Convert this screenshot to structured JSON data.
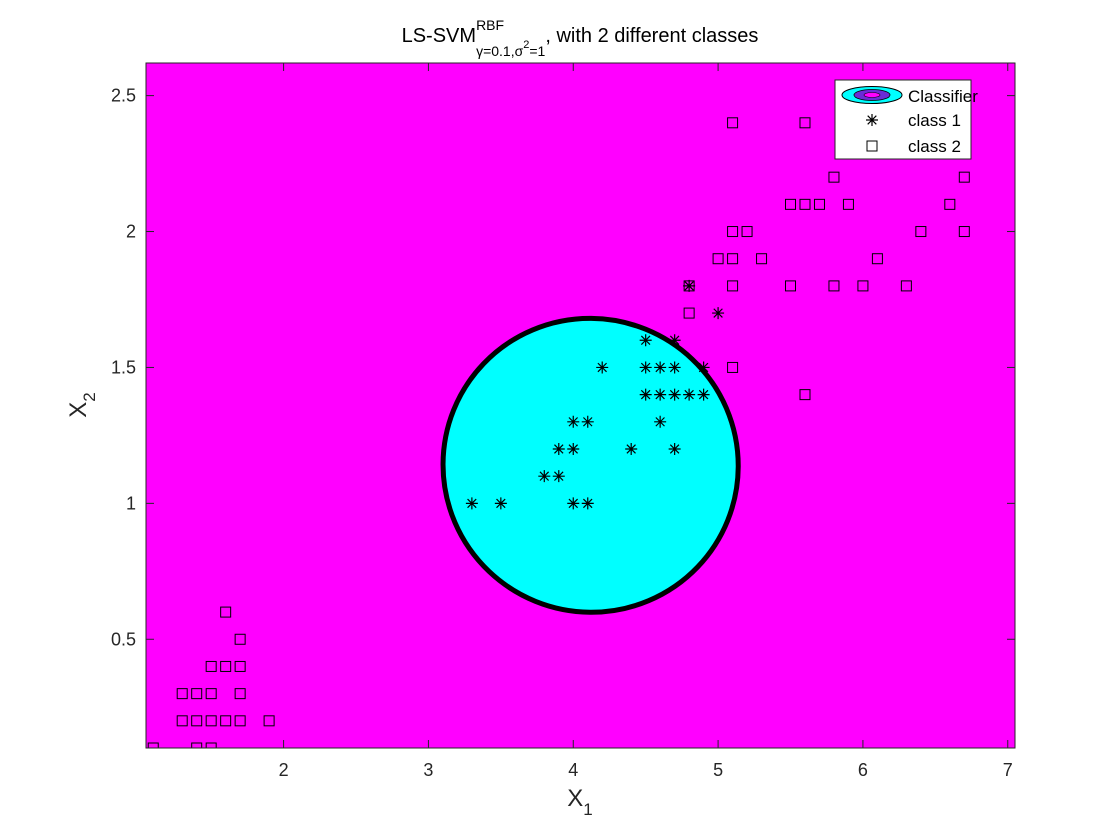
{
  "chart_data": {
    "type": "scatter",
    "title": {
      "main": "LS-SVM",
      "superscript": "RBF",
      "subscript_gamma": "γ=0.1,",
      "subscript_sigma": "σ",
      "subscript_sigma_exp": "2",
      "subscript_tail": "=1",
      "suffix": ", with 2 different classes"
    },
    "xlabel": {
      "base": "X",
      "sub": "1"
    },
    "ylabel": {
      "base": "X",
      "sub": "2"
    },
    "xlim": [
      1.05,
      7.05
    ],
    "ylim": [
      0.1,
      2.62
    ],
    "xticks": [
      {
        "value": 2,
        "label": "2"
      },
      {
        "value": 3,
        "label": "3"
      },
      {
        "value": 4,
        "label": "4"
      },
      {
        "value": 5,
        "label": "5"
      },
      {
        "value": 6,
        "label": "6"
      },
      {
        "value": 7,
        "label": "7"
      }
    ],
    "yticks": [
      {
        "value": 0.5,
        "label": "0.5"
      },
      {
        "value": 1,
        "label": "1"
      },
      {
        "value": 1.5,
        "label": "1.5"
      },
      {
        "value": 2,
        "label": "2"
      },
      {
        "value": 2.5,
        "label": "2.5"
      }
    ],
    "grid": false,
    "legend_position": "top-right",
    "colors": {
      "class2_region": "#ff00ff",
      "class1_region": "#00ffff",
      "boundary": "#000000",
      "marker": "#000000"
    },
    "decision_region": {
      "label": "Classifier",
      "shape": "ellipse",
      "center": [
        4.12,
        1.14
      ],
      "semi_axis_major": 2.04,
      "semi_axis_minor": 0.54,
      "angle_deg": 22
    },
    "series": [
      {
        "name": "class 1",
        "marker": "asterisk",
        "points": [
          [
            3.3,
            1.0
          ],
          [
            3.5,
            1.0
          ],
          [
            4.0,
            1.0
          ],
          [
            4.1,
            1.0
          ],
          [
            3.8,
            1.1
          ],
          [
            3.9,
            1.1
          ],
          [
            3.9,
            1.2
          ],
          [
            4.0,
            1.2
          ],
          [
            4.4,
            1.2
          ],
          [
            4.7,
            1.2
          ],
          [
            4.0,
            1.3
          ],
          [
            4.1,
            1.3
          ],
          [
            4.6,
            1.3
          ],
          [
            4.5,
            1.4
          ],
          [
            4.6,
            1.4
          ],
          [
            4.7,
            1.4
          ],
          [
            4.8,
            1.4
          ],
          [
            4.9,
            1.4
          ],
          [
            4.2,
            1.5
          ],
          [
            4.5,
            1.5
          ],
          [
            4.6,
            1.5
          ],
          [
            4.7,
            1.5
          ],
          [
            4.9,
            1.5
          ],
          [
            4.5,
            1.6
          ],
          [
            4.7,
            1.6
          ],
          [
            5.0,
            1.7
          ],
          [
            4.8,
            1.8
          ]
        ]
      },
      {
        "name": "class 2",
        "marker": "square",
        "points": [
          [
            1.1,
            0.1
          ],
          [
            1.4,
            0.1
          ],
          [
            1.5,
            0.1
          ],
          [
            1.3,
            0.2
          ],
          [
            1.4,
            0.2
          ],
          [
            1.5,
            0.2
          ],
          [
            1.6,
            0.2
          ],
          [
            1.7,
            0.2
          ],
          [
            1.9,
            0.2
          ],
          [
            1.3,
            0.3
          ],
          [
            1.4,
            0.3
          ],
          [
            1.5,
            0.3
          ],
          [
            1.7,
            0.3
          ],
          [
            1.5,
            0.4
          ],
          [
            1.6,
            0.4
          ],
          [
            1.7,
            0.4
          ],
          [
            1.7,
            0.5
          ],
          [
            1.6,
            0.6
          ],
          [
            5.6,
            1.4
          ],
          [
            5.1,
            1.5
          ],
          [
            4.8,
            1.7
          ],
          [
            4.8,
            1.8
          ],
          [
            5.1,
            1.8
          ],
          [
            5.5,
            1.8
          ],
          [
            5.8,
            1.8
          ],
          [
            6.0,
            1.8
          ],
          [
            6.3,
            1.8
          ],
          [
            5.0,
            1.9
          ],
          [
            5.1,
            1.9
          ],
          [
            5.3,
            1.9
          ],
          [
            6.1,
            1.9
          ],
          [
            5.1,
            2.0
          ],
          [
            5.2,
            2.0
          ],
          [
            6.4,
            2.0
          ],
          [
            6.7,
            2.0
          ],
          [
            5.5,
            2.1
          ],
          [
            5.6,
            2.1
          ],
          [
            5.7,
            2.1
          ],
          [
            5.9,
            2.1
          ],
          [
            6.6,
            2.1
          ],
          [
            5.8,
            2.2
          ],
          [
            6.7,
            2.2
          ],
          [
            5.1,
            2.4
          ],
          [
            5.6,
            2.4
          ]
        ]
      }
    ]
  }
}
